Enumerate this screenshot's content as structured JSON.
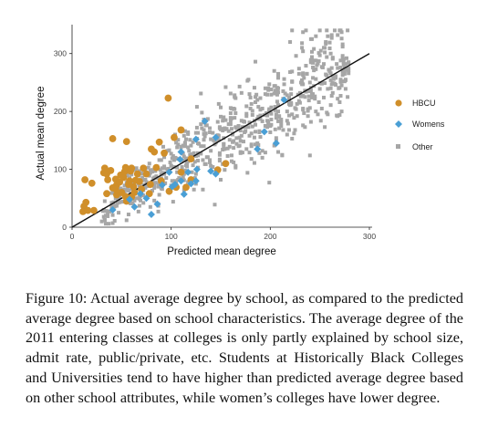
{
  "chart_data": {
    "type": "scatter",
    "xlabel": "Predicted mean degree",
    "ylabel": "Actual mean degree",
    "xlim": [
      0,
      300
    ],
    "ylim": [
      0,
      350
    ],
    "xticks": [
      "0",
      "100",
      "200",
      "300"
    ],
    "yticks": [
      "0",
      "100",
      "200",
      "300"
    ],
    "reference_line": {
      "x": [
        0,
        300
      ],
      "y": [
        0,
        300
      ]
    },
    "legend_position": "right",
    "series": [
      {
        "name": "HBCU",
        "marker": "circle",
        "color": "#d08f2a",
        "points": [
          [
            97,
            223
          ],
          [
            110,
            168
          ],
          [
            41,
            153
          ],
          [
            55,
            148
          ],
          [
            88,
            147
          ],
          [
            80,
            135
          ],
          [
            83,
            130
          ],
          [
            93,
            128
          ],
          [
            103,
            155
          ],
          [
            120,
            118
          ],
          [
            147,
            99
          ],
          [
            155,
            110
          ],
          [
            13,
            82
          ],
          [
            20,
            76
          ],
          [
            32,
            94
          ],
          [
            33,
            102
          ],
          [
            35,
            92
          ],
          [
            39,
            98
          ],
          [
            36,
            82
          ],
          [
            44,
            83
          ],
          [
            45,
            73
          ],
          [
            48,
            78
          ],
          [
            49,
            90
          ],
          [
            52,
            86
          ],
          [
            53,
            96
          ],
          [
            54,
            103
          ],
          [
            57,
            74
          ],
          [
            58,
            80
          ],
          [
            59,
            97
          ],
          [
            60,
            102
          ],
          [
            62,
            70
          ],
          [
            64,
            81
          ],
          [
            66,
            92
          ],
          [
            68,
            79
          ],
          [
            70,
            66
          ],
          [
            72,
            102
          ],
          [
            75,
            92
          ],
          [
            78,
            58
          ],
          [
            79,
            74
          ],
          [
            41,
            68
          ],
          [
            44,
            66
          ],
          [
            45,
            56
          ],
          [
            50,
            60
          ],
          [
            54,
            53
          ],
          [
            60,
            52
          ],
          [
            55,
            45
          ],
          [
            12,
            36
          ],
          [
            11,
            27
          ],
          [
            14,
            43
          ],
          [
            22,
            29
          ],
          [
            16,
            29
          ],
          [
            105,
            69
          ],
          [
            98,
            62
          ],
          [
            115,
            69
          ],
          [
            85,
            103
          ],
          [
            90,
            80
          ],
          [
            110,
            95
          ],
          [
            120,
            82
          ],
          [
            35,
            58
          ],
          [
            63,
            60
          ]
        ]
      },
      {
        "name": "Womens",
        "marker": "diamond",
        "color": "#4a9fd5",
        "points": [
          [
            214,
            220
          ],
          [
            134,
            183
          ],
          [
            145,
            155
          ],
          [
            194,
            165
          ],
          [
            187,
            135
          ],
          [
            206,
            145
          ],
          [
            125,
            152
          ],
          [
            110,
            130
          ],
          [
            109,
            117
          ],
          [
            117,
            95
          ],
          [
            126,
            100
          ],
          [
            145,
            92
          ],
          [
            140,
            97
          ],
          [
            120,
            75
          ],
          [
            104,
            74
          ],
          [
            113,
            57
          ],
          [
            101,
            70
          ],
          [
            91,
            73
          ],
          [
            69,
            58
          ],
          [
            75,
            50
          ],
          [
            58,
            48
          ],
          [
            63,
            35
          ],
          [
            41,
            30
          ],
          [
            86,
            40
          ],
          [
            80,
            22
          ],
          [
            98,
            95
          ],
          [
            110,
            80
          ],
          [
            125,
            80
          ]
        ]
      },
      {
        "name": "Other",
        "marker": "square",
        "color": "#a6a6a6",
        "points": []
      }
    ]
  },
  "caption": "Figure 10: Actual average degree by school, as compared to the predicted average degree based on school characteristics. The average degree of the 2011 entering classes at colleges is only partly explained by school size, admit rate, public/private, etc. Students at Historically Black Colleges and Universities tend to have higher than predicted average degree based on other school attributes, while women’s colleges have lower degree."
}
